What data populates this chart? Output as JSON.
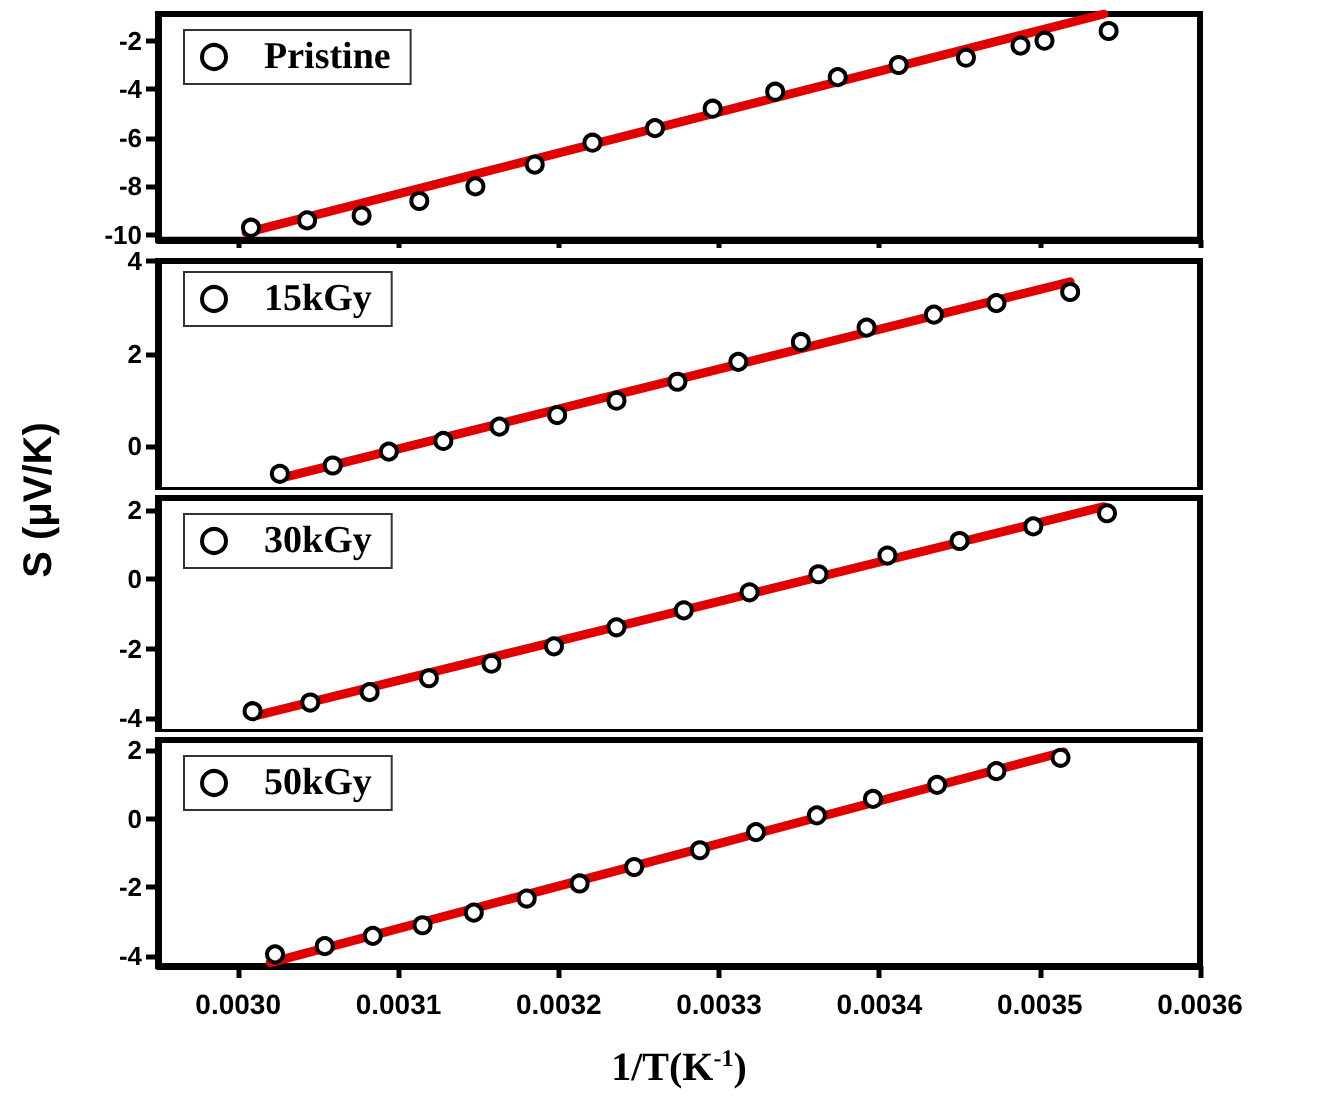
{
  "chart_data": [
    {
      "type": "scatter",
      "xlim": [
        0.00295,
        0.0036
      ],
      "ylim": [
        -10.2,
        -0.9
      ],
      "yticks": [
        -10,
        -8,
        -6,
        -4,
        -2
      ],
      "tick_labels": "y",
      "legend": "top left",
      "grid": false,
      "xticks": [
        {
          "value": 0.003,
          "label": null
        },
        {
          "value": 0.0031,
          "label": null
        },
        {
          "value": 0.0032,
          "label": null
        },
        {
          "value": 0.0033,
          "label": null
        },
        {
          "value": 0.0034,
          "label": null
        },
        {
          "value": 0.0035,
          "label": null
        },
        {
          "value": 0.0036,
          "label": null
        }
      ],
      "series": [
        {
          "name": "Pristine",
          "marker": "circle",
          "color": "#000000",
          "x": [
            0.003008,
            0.003043,
            0.003077,
            0.003113,
            0.003148,
            0.003185,
            0.003221,
            0.00326,
            0.003296,
            0.003335,
            0.003374,
            0.003412,
            0.003454,
            0.003488,
            0.003503,
            0.003543
          ],
          "values": [
            -9.7,
            -9.4,
            -9.2,
            -8.6,
            -8.0,
            -7.1,
            -6.2,
            -5.6,
            -4.8,
            -4.1,
            -3.5,
            -3.0,
            -2.7,
            -2.2,
            -2.0,
            -1.6
          ]
        },
        {
          "type": "line",
          "marker": "none",
          "color": "#e00000",
          "x": [
            0.003005,
            0.00354
          ],
          "values": [
            -9.9,
            -0.9
          ]
        }
      ]
    },
    {
      "type": "scatter",
      "xlim": [
        0.00295,
        0.0036
      ],
      "ylim": [
        -0.95,
        4
      ],
      "yticks": [
        0,
        2,
        4
      ],
      "tick_labels": "y",
      "legend": "top left",
      "grid": false,
      "ylabel": "S (μV/K)",
      "xticks": [
        {
          "value": 0.003,
          "label": null
        },
        {
          "value": 0.0031,
          "label": null
        },
        {
          "value": 0.0032,
          "label": null
        },
        {
          "value": 0.0033,
          "label": null
        },
        {
          "value": 0.0034,
          "label": null
        },
        {
          "value": 0.0035,
          "label": null
        },
        {
          "value": 0.0036,
          "label": null
        }
      ],
      "series": [
        {
          "name": "15kGy",
          "marker": "circle",
          "color": "#000000",
          "x": [
            0.003026,
            0.003059,
            0.003094,
            0.003128,
            0.003163,
            0.003199,
            0.003236,
            0.003274,
            0.003312,
            0.003351,
            0.003392,
            0.003434,
            0.003473,
            0.003519
          ],
          "values": [
            -0.6,
            -0.42,
            -0.12,
            0.11,
            0.42,
            0.67,
            0.98,
            1.39,
            1.82,
            2.25,
            2.56,
            2.84,
            3.09,
            3.33
          ]
        },
        {
          "type": "line",
          "marker": "none",
          "color": "#e00000",
          "x": [
            0.003026,
            0.003519
          ],
          "values": [
            -0.7,
            3.55
          ]
        }
      ]
    },
    {
      "type": "scatter",
      "xlim": [
        0.00295,
        0.0036
      ],
      "ylim": [
        -4.4,
        2.35
      ],
      "yticks": [
        -4,
        -2,
        0,
        2
      ],
      "tick_labels": "y",
      "legend": "top left",
      "grid": false,
      "xticks": [
        {
          "value": 0.003,
          "label": null
        },
        {
          "value": 0.0031,
          "label": null
        },
        {
          "value": 0.0032,
          "label": null
        },
        {
          "value": 0.0033,
          "label": null
        },
        {
          "value": 0.0034,
          "label": null
        },
        {
          "value": 0.0035,
          "label": null
        },
        {
          "value": 0.0036,
          "label": null
        }
      ],
      "series": [
        {
          "name": "30kGy",
          "marker": "circle",
          "color": "#000000",
          "x": [
            0.003009,
            0.003045,
            0.003082,
            0.003119,
            0.003158,
            0.003197,
            0.003236,
            0.003278,
            0.003319,
            0.003362,
            0.003405,
            0.00345,
            0.003496,
            0.003542
          ],
          "values": [
            -3.8,
            -3.55,
            -3.25,
            -2.85,
            -2.43,
            -1.93,
            -1.38,
            -0.89,
            -0.37,
            0.15,
            0.69,
            1.11,
            1.53,
            1.91
          ]
        },
        {
          "type": "line",
          "marker": "none",
          "color": "#e00000",
          "x": [
            0.003009,
            0.00354
          ],
          "values": [
            -3.95,
            2.1
          ]
        }
      ]
    },
    {
      "type": "scatter",
      "xlim": [
        0.00295,
        0.0036
      ],
      "ylim": [
        -4.3,
        2.3
      ],
      "yticks": [
        -4,
        -2,
        0,
        2
      ],
      "legend": "top left",
      "grid": false,
      "xlabel": "1/T(K$^{-1}$)",
      "xticks": [
        {
          "value": 0.003,
          "label": "0.0030"
        },
        {
          "value": 0.0031,
          "label": "0.0031"
        },
        {
          "value": 0.0032,
          "label": "0.0032"
        },
        {
          "value": 0.0033,
          "label": "0.0033"
        },
        {
          "value": 0.0034,
          "label": "0.0034"
        },
        {
          "value": 0.0035,
          "label": "0.0035"
        },
        {
          "value": 0.0036,
          "label": "0.0036"
        }
      ],
      "series": [
        {
          "name": "50kGy",
          "marker": "circle",
          "color": "#000000",
          "x": [
            0.003023,
            0.003054,
            0.003084,
            0.003115,
            0.003147,
            0.00318,
            0.003213,
            0.003247,
            0.003288,
            0.003323,
            0.003361,
            0.003396,
            0.003436,
            0.003473,
            0.003513
          ],
          "values": [
            -3.96,
            -3.72,
            -3.42,
            -3.11,
            -2.74,
            -2.33,
            -1.89,
            -1.41,
            -0.92,
            -0.39,
            0.1,
            0.58,
            0.99,
            1.39,
            1.78
          ]
        },
        {
          "type": "line",
          "marker": "none",
          "color": "#e00000",
          "x": [
            0.00302,
            0.003515
          ],
          "values": [
            -4.2,
            1.95
          ]
        }
      ]
    }
  ]
}
